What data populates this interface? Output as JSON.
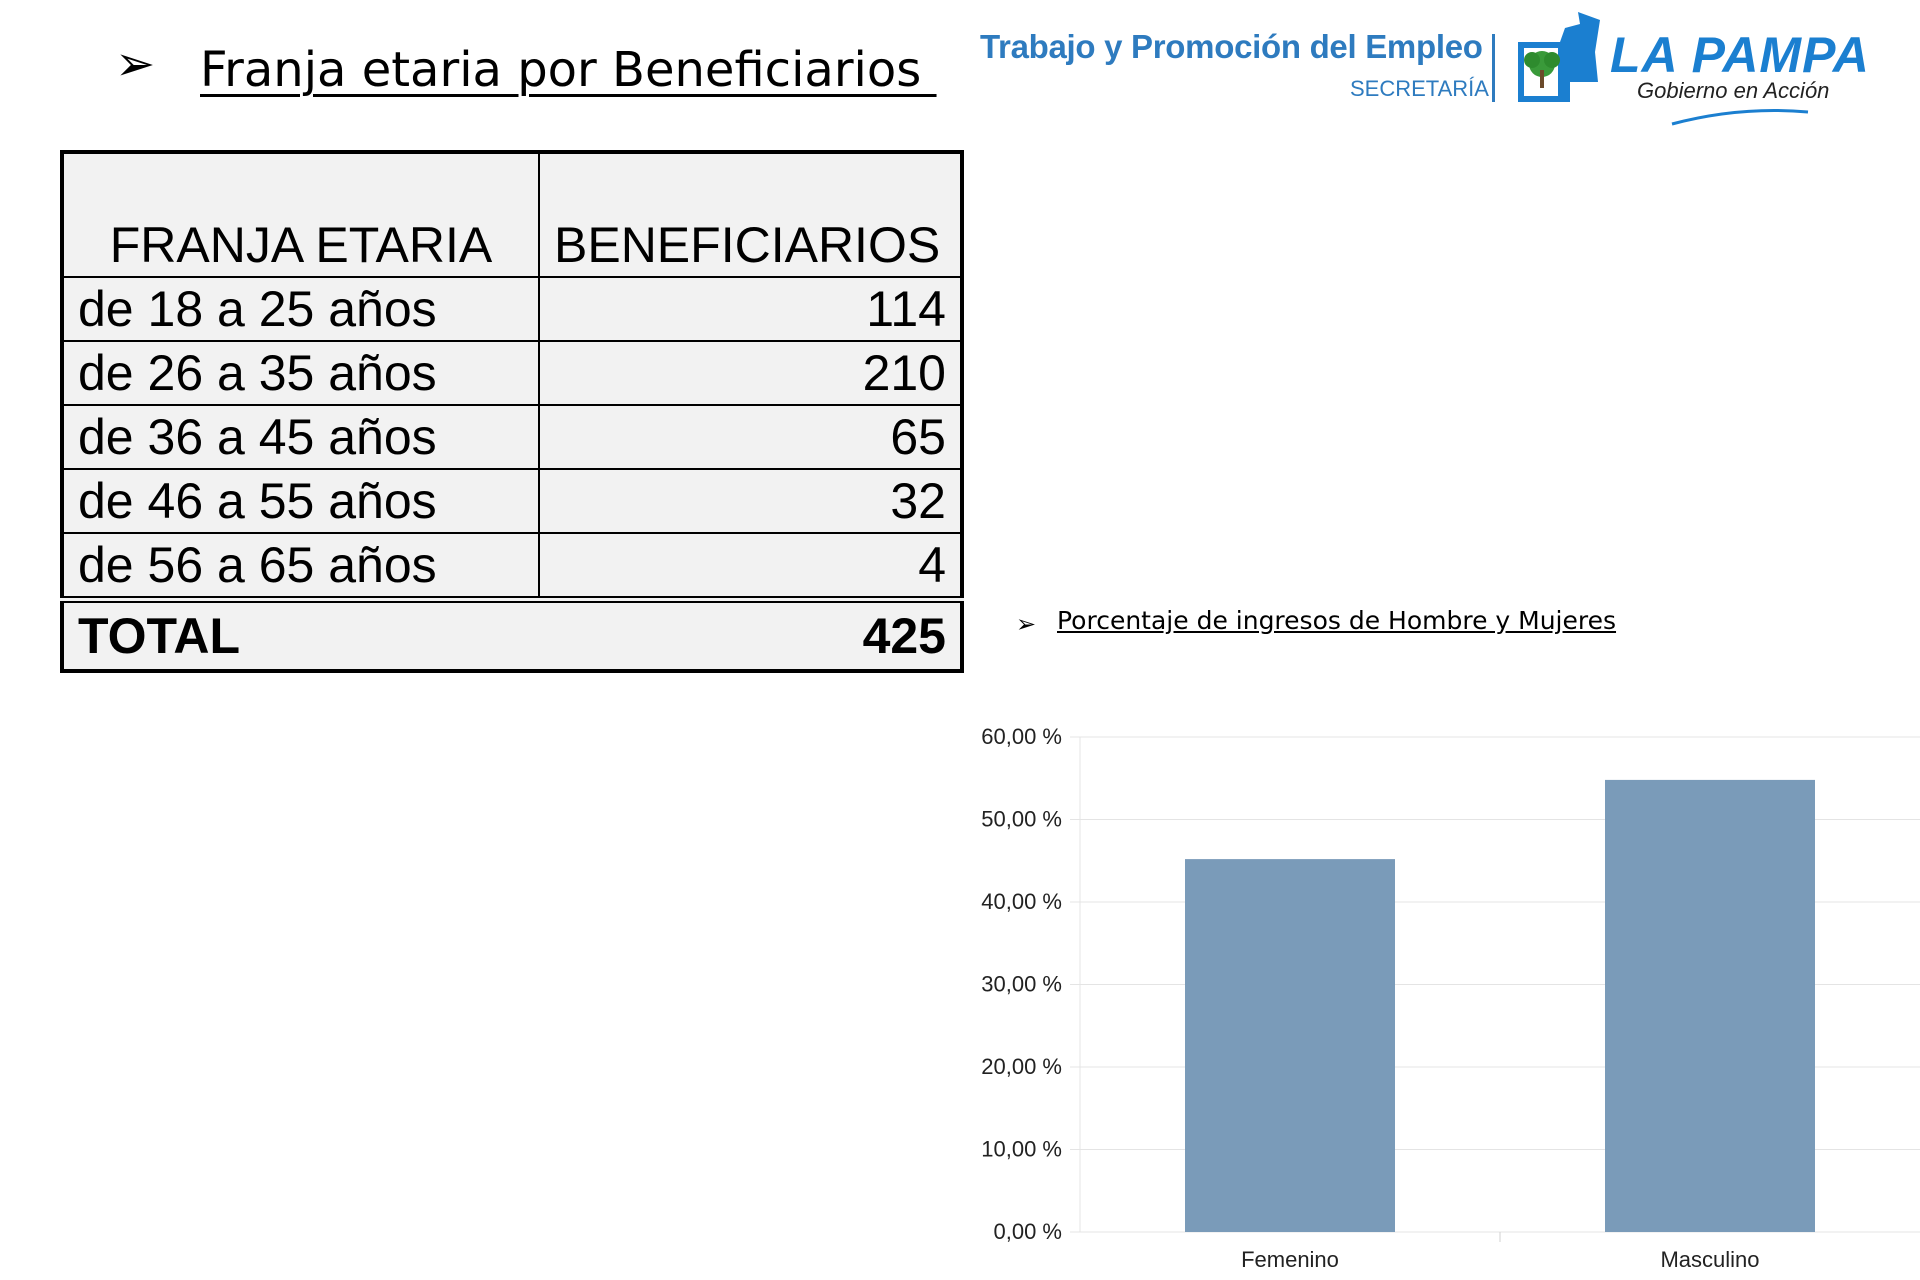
{
  "main_title": "Franja etaria por Beneficiarios ",
  "logo": {
    "line1": "Trabajo y Promoción del Empleo",
    "line2": "SECRETARÍA",
    "brand": "LA PAMPA",
    "tagline": "Gobierno en Acción",
    "color": "#2e7bbf"
  },
  "table": {
    "headers": [
      "FRANJA ETARIA",
      "BENEFICIARIOS"
    ],
    "rows": [
      {
        "range": "de 18 a 25 años",
        "value": "114"
      },
      {
        "range": "de 26 a 35 años",
        "value": "210"
      },
      {
        "range": "de 36 a 45 años",
        "value": "65"
      },
      {
        "range": "de 46 a 55 años",
        "value": "32"
      },
      {
        "range": "de 56 a 65 años",
        "value": "4"
      }
    ],
    "total_label": "TOTAL",
    "total_value": "425"
  },
  "chart_title": "Porcentaje de ingresos de Hombre y Mujeres",
  "chart_data": {
    "type": "bar",
    "categories": [
      "Femenino",
      "Masculino"
    ],
    "values": [
      45.2,
      54.8
    ],
    "ylim": [
      0,
      60
    ],
    "yticks": [
      "0,00 %",
      "10,00 %",
      "20,00 %",
      "30,00 %",
      "40,00 %",
      "50,00 %",
      "60,00 %"
    ],
    "grid": true,
    "bar_color": "#7a9bb9"
  }
}
